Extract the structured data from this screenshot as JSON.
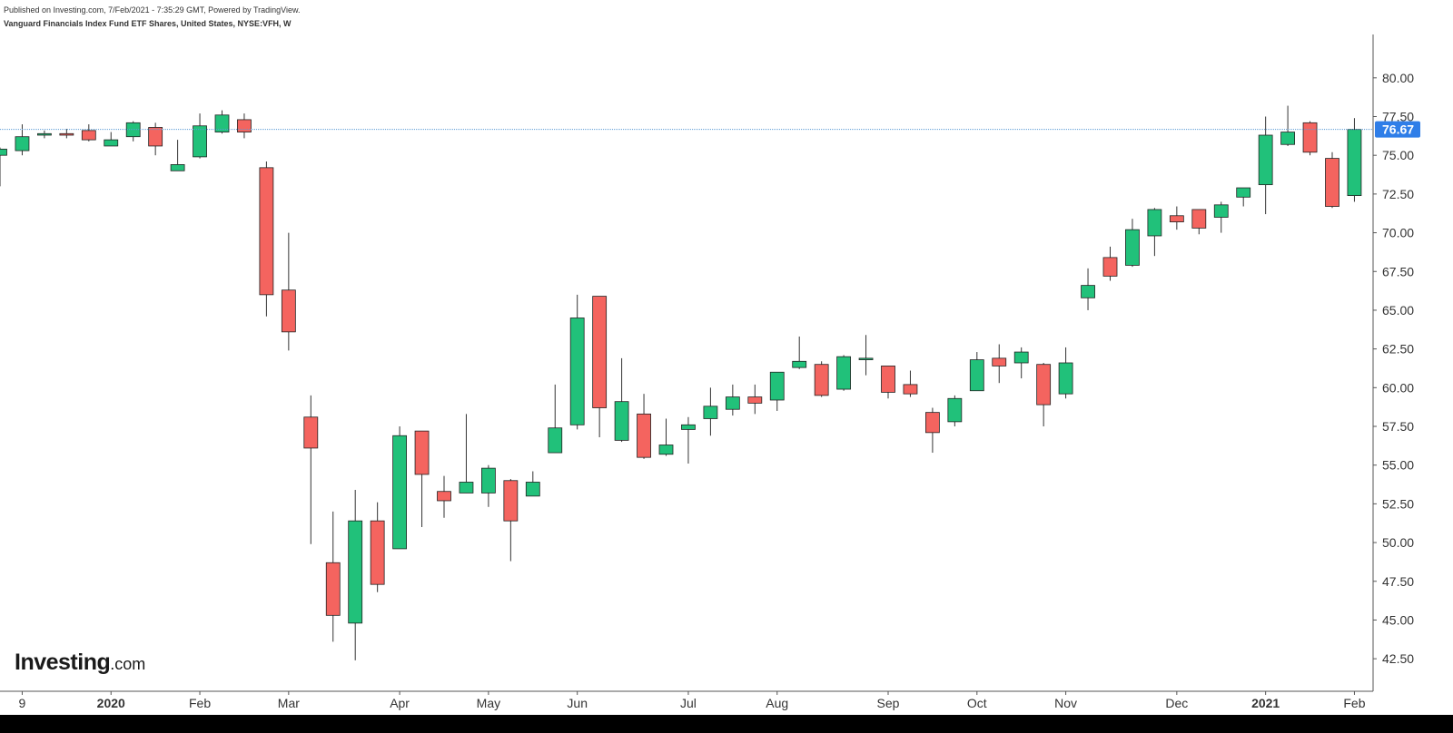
{
  "header": {
    "published": "Published on Investing.com, 7/Feb/2021 - 7:35:29 GMT, Powered by TradingView.",
    "symbol_line": "Vanguard Financials Index Fund ETF Shares, United States, NYSE:VFH, W"
  },
  "logo": {
    "main": "Investing",
    "suffix": ".com"
  },
  "colors": {
    "up": "#21c17a",
    "down": "#f4645f",
    "wick": "#333333",
    "price_line": "#5b9bd5",
    "price_label_bg": "#2f7ee8",
    "axis_text": "#333333"
  },
  "chart_data": {
    "type": "candlestick",
    "interval": "W",
    "y_axis": {
      "ticks": [
        "80.00",
        "77.50",
        "75.00",
        "72.50",
        "70.00",
        "67.50",
        "65.00",
        "62.50",
        "60.00",
        "57.50",
        "55.00",
        "52.50",
        "50.00",
        "47.50",
        "45.00",
        "42.50"
      ],
      "range": [
        40.4,
        82.8
      ],
      "position": "right"
    },
    "x_axis": {
      "ticks": [
        {
          "label": "9",
          "index": 1
        },
        {
          "label": "2020",
          "index": 5,
          "bold": true
        },
        {
          "label": "Feb",
          "index": 9
        },
        {
          "label": "Mar",
          "index": 13
        },
        {
          "label": "Apr",
          "index": 18
        },
        {
          "label": "May",
          "index": 22
        },
        {
          "label": "Jun",
          "index": 26
        },
        {
          "label": "Jul",
          "index": 31
        },
        {
          "label": "Aug",
          "index": 35
        },
        {
          "label": "Sep",
          "index": 40
        },
        {
          "label": "Oct",
          "index": 44
        },
        {
          "label": "Nov",
          "index": 48
        },
        {
          "label": "Dec",
          "index": 53
        },
        {
          "label": "2021",
          "index": 57,
          "bold": true
        },
        {
          "label": "Feb",
          "index": 61
        }
      ]
    },
    "last_price": 76.67,
    "last_price_label": "76.67",
    "candles": [
      {
        "o": 75.0,
        "h": 75.5,
        "l": 73.0,
        "c": 75.4
      },
      {
        "o": 75.3,
        "h": 77.0,
        "l": 75.0,
        "c": 76.2
      },
      {
        "o": 76.3,
        "h": 76.6,
        "l": 76.1,
        "c": 76.4
      },
      {
        "o": 76.4,
        "h": 76.7,
        "l": 76.1,
        "c": 76.3
      },
      {
        "o": 76.6,
        "h": 77.0,
        "l": 75.9,
        "c": 76.0
      },
      {
        "o": 75.6,
        "h": 76.5,
        "l": 75.6,
        "c": 76.0
      },
      {
        "o": 76.2,
        "h": 77.2,
        "l": 75.9,
        "c": 77.1
      },
      {
        "o": 76.8,
        "h": 77.1,
        "l": 75.0,
        "c": 75.6
      },
      {
        "o": 74.0,
        "h": 76.0,
        "l": 74.0,
        "c": 74.4
      },
      {
        "o": 74.9,
        "h": 77.7,
        "l": 74.8,
        "c": 76.9
      },
      {
        "o": 76.5,
        "h": 77.9,
        "l": 76.4,
        "c": 77.6
      },
      {
        "o": 77.3,
        "h": 77.7,
        "l": 76.1,
        "c": 76.5
      },
      {
        "o": 74.2,
        "h": 74.6,
        "l": 64.6,
        "c": 66.0
      },
      {
        "o": 66.3,
        "h": 70.0,
        "l": 62.4,
        "c": 63.6
      },
      {
        "o": 58.1,
        "h": 59.5,
        "l": 49.9,
        "c": 56.1
      },
      {
        "o": 48.7,
        "h": 52.0,
        "l": 43.6,
        "c": 45.3
      },
      {
        "o": 44.8,
        "h": 53.4,
        "l": 42.4,
        "c": 51.4
      },
      {
        "o": 51.4,
        "h": 52.6,
        "l": 46.8,
        "c": 47.3
      },
      {
        "o": 49.6,
        "h": 57.5,
        "l": 49.6,
        "c": 56.9
      },
      {
        "o": 57.2,
        "h": 57.2,
        "l": 51.0,
        "c": 54.4
      },
      {
        "o": 53.3,
        "h": 54.3,
        "l": 51.6,
        "c": 52.7
      },
      {
        "o": 53.2,
        "h": 58.3,
        "l": 53.2,
        "c": 53.9
      },
      {
        "o": 53.2,
        "h": 55.0,
        "l": 52.3,
        "c": 54.8
      },
      {
        "o": 54.0,
        "h": 54.1,
        "l": 48.8,
        "c": 51.4
      },
      {
        "o": 53.0,
        "h": 54.6,
        "l": 53.0,
        "c": 53.9
      },
      {
        "o": 55.8,
        "h": 60.2,
        "l": 55.8,
        "c": 57.4
      },
      {
        "o": 57.6,
        "h": 66.0,
        "l": 57.3,
        "c": 64.5
      },
      {
        "o": 65.9,
        "h": 65.9,
        "l": 56.8,
        "c": 58.7
      },
      {
        "o": 56.6,
        "h": 61.9,
        "l": 56.5,
        "c": 59.1
      },
      {
        "o": 58.3,
        "h": 59.6,
        "l": 55.4,
        "c": 55.5
      },
      {
        "o": 55.7,
        "h": 58.0,
        "l": 55.6,
        "c": 56.3
      },
      {
        "o": 57.3,
        "h": 58.1,
        "l": 55.1,
        "c": 57.6
      },
      {
        "o": 58.0,
        "h": 60.0,
        "l": 56.9,
        "c": 58.8
      },
      {
        "o": 58.6,
        "h": 60.2,
        "l": 58.2,
        "c": 59.4
      },
      {
        "o": 59.4,
        "h": 60.2,
        "l": 58.3,
        "c": 59.0
      },
      {
        "o": 59.2,
        "h": 61.0,
        "l": 58.5,
        "c": 61.0
      },
      {
        "o": 61.3,
        "h": 63.3,
        "l": 61.2,
        "c": 61.7
      },
      {
        "o": 61.5,
        "h": 61.7,
        "l": 59.4,
        "c": 59.5
      },
      {
        "o": 59.9,
        "h": 62.1,
        "l": 59.8,
        "c": 62.0
      },
      {
        "o": 61.8,
        "h": 63.4,
        "l": 60.8,
        "c": 61.9
      },
      {
        "o": 61.4,
        "h": 61.4,
        "l": 59.3,
        "c": 59.7
      },
      {
        "o": 60.2,
        "h": 61.1,
        "l": 59.4,
        "c": 59.6
      },
      {
        "o": 58.4,
        "h": 58.7,
        "l": 55.8,
        "c": 57.1
      },
      {
        "o": 57.8,
        "h": 59.5,
        "l": 57.5,
        "c": 59.3
      },
      {
        "o": 59.8,
        "h": 62.3,
        "l": 59.8,
        "c": 61.8
      },
      {
        "o": 61.9,
        "h": 62.8,
        "l": 60.3,
        "c": 61.4
      },
      {
        "o": 61.6,
        "h": 62.6,
        "l": 60.6,
        "c": 62.3
      },
      {
        "o": 61.5,
        "h": 61.6,
        "l": 57.5,
        "c": 58.9
      },
      {
        "o": 59.6,
        "h": 62.6,
        "l": 59.3,
        "c": 61.6
      },
      {
        "o": 65.8,
        "h": 67.7,
        "l": 65.0,
        "c": 66.6
      },
      {
        "o": 68.4,
        "h": 69.1,
        "l": 66.9,
        "c": 67.2
      },
      {
        "o": 67.9,
        "h": 70.9,
        "l": 67.8,
        "c": 70.2
      },
      {
        "o": 69.8,
        "h": 71.6,
        "l": 68.5,
        "c": 71.5
      },
      {
        "o": 71.1,
        "h": 71.7,
        "l": 70.2,
        "c": 70.7
      },
      {
        "o": 71.5,
        "h": 71.5,
        "l": 69.9,
        "c": 70.3
      },
      {
        "o": 71.0,
        "h": 72.0,
        "l": 70.0,
        "c": 71.8
      },
      {
        "o": 72.3,
        "h": 72.9,
        "l": 71.7,
        "c": 72.9
      },
      {
        "o": 73.1,
        "h": 77.5,
        "l": 71.2,
        "c": 76.3
      },
      {
        "o": 75.7,
        "h": 78.2,
        "l": 75.6,
        "c": 76.5
      },
      {
        "o": 77.1,
        "h": 77.2,
        "l": 75.0,
        "c": 75.2
      },
      {
        "o": 74.8,
        "h": 75.2,
        "l": 71.6,
        "c": 71.7
      },
      {
        "o": 72.4,
        "h": 77.4,
        "l": 72.0,
        "c": 76.67
      }
    ]
  }
}
